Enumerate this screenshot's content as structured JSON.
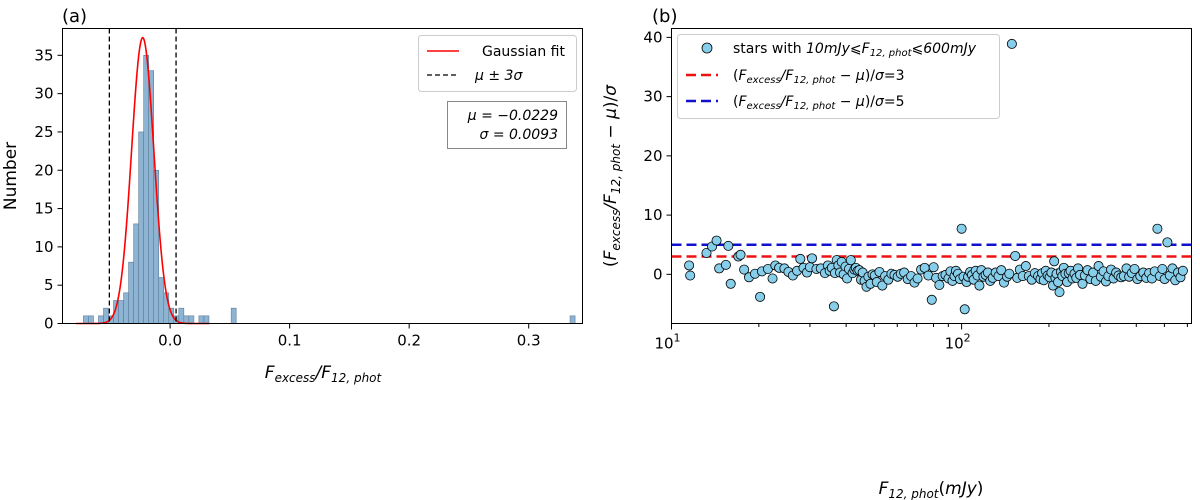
{
  "chart_data": [
    {
      "panel": "(a)",
      "type": "histogram",
      "xlabel": "F_excess/F_12,phot",
      "ylabel": "Number",
      "xlim": [
        -0.09,
        0.345
      ],
      "ylim": [
        0,
        38.5
      ],
      "xticks": [
        0.0,
        0.1,
        0.2,
        0.3
      ],
      "xtick_labels": [
        "0.0",
        "0.1",
        "0.2",
        "0.3"
      ],
      "yticks": [
        0,
        5,
        10,
        15,
        20,
        25,
        30,
        35
      ],
      "ytick_labels": [
        "0",
        "5",
        "10",
        "15",
        "20",
        "25",
        "30",
        "35"
      ],
      "bin_width": 0.0042,
      "bars": [
        {
          "x": -0.0725,
          "count": 1
        },
        {
          "x": -0.0683,
          "count": 1
        },
        {
          "x": -0.0599,
          "count": 1
        },
        {
          "x": -0.0557,
          "count": 2
        },
        {
          "x": -0.0515,
          "count": 1
        },
        {
          "x": -0.0473,
          "count": 3
        },
        {
          "x": -0.0431,
          "count": 3
        },
        {
          "x": -0.0389,
          "count": 4
        },
        {
          "x": -0.0347,
          "count": 8
        },
        {
          "x": -0.0305,
          "count": 13
        },
        {
          "x": -0.0263,
          "count": 25
        },
        {
          "x": -0.0221,
          "count": 35
        },
        {
          "x": -0.0179,
          "count": 33
        },
        {
          "x": -0.0137,
          "count": 20
        },
        {
          "x": -0.0095,
          "count": 6
        },
        {
          "x": -0.0053,
          "count": 4
        },
        {
          "x": -0.0011,
          "count": 2
        },
        {
          "x": 0.0031,
          "count": 1
        },
        {
          "x": 0.0073,
          "count": 2
        },
        {
          "x": 0.0115,
          "count": 1
        },
        {
          "x": 0.0157,
          "count": 1
        },
        {
          "x": 0.0241,
          "count": 1
        },
        {
          "x": 0.0283,
          "count": 1
        },
        {
          "x": 0.0511,
          "count": 2
        },
        {
          "x": 0.3346,
          "count": 1
        }
      ],
      "gaussian": {
        "label": "Gaussian fit",
        "mu": -0.0229,
        "sigma": 0.0093,
        "peak": 37.3,
        "color": "#ff0000"
      },
      "vlines": {
        "label": "μ ± 3σ",
        "x": [
          -0.0508,
          0.005
        ],
        "color": "#000000"
      },
      "stats": {
        "mu_text": "μ = −0.0229",
        "sigma_text": "σ = 0.0093"
      },
      "bar_color": "#8eb4d4",
      "legend_position": "top-right"
    },
    {
      "panel": "(b)",
      "type": "scatter",
      "xscale": "log",
      "xlabel": "F_12,phot (mJy)",
      "ylabel": "(F_excess/F_12,phot − μ)/σ",
      "xlim": [
        10,
        620
      ],
      "ylim": [
        -8.3,
        41.5
      ],
      "xticks": [
        10,
        100
      ],
      "yticks": [
        0,
        10,
        20,
        30,
        40
      ],
      "ytick_labels": [
        "0",
        "10",
        "20",
        "30",
        "40"
      ],
      "hlines": [
        {
          "label": "(F_excess/F_12,phot − μ)/σ=3",
          "y": 3,
          "color": "#ee1111"
        },
        {
          "label": "(F_excess/F_12,phot − μ)/σ=5",
          "y": 5,
          "color": "#1111cc"
        }
      ],
      "scatter_label": "stars with 10mJy⩽F_12,phot⩽600mJy",
      "point_color": "#87ceeb",
      "legend_position": "top-left",
      "points": [
        [
          11.5,
          1.5
        ],
        [
          11.6,
          -0.2
        ],
        [
          13.2,
          3.6
        ],
        [
          13.8,
          4.7
        ],
        [
          14.3,
          5.7
        ],
        [
          14.6,
          1.0
        ],
        [
          15.4,
          1.6
        ],
        [
          15.7,
          4.8
        ],
        [
          16.0,
          -1.6
        ],
        [
          17.0,
          3.0
        ],
        [
          17.3,
          3.3
        ],
        [
          17.8,
          0.8
        ],
        [
          18.5,
          -0.5
        ],
        [
          19.4,
          0.1
        ],
        [
          20.2,
          -3.8
        ],
        [
          20.5,
          0.5
        ],
        [
          21.5,
          0.9
        ],
        [
          22.3,
          -0.7
        ],
        [
          22.8,
          1.5
        ],
        [
          23.5,
          1.1
        ],
        [
          24.5,
          1.0
        ],
        [
          25.3,
          0.4
        ],
        [
          26.2,
          -0.2
        ],
        [
          27.1,
          0.6
        ],
        [
          27.8,
          2.6
        ],
        [
          28.5,
          1.1
        ],
        [
          29.3,
          0.3
        ],
        [
          30.0,
          1.2
        ],
        [
          30.5,
          2.7
        ],
        [
          31.6,
          0.9
        ],
        [
          32.7,
          1.0
        ],
        [
          33.8,
          0.2
        ],
        [
          34.6,
          1.5
        ],
        [
          35.1,
          0.6
        ],
        [
          35.7,
          1.1
        ],
        [
          36.3,
          -5.4
        ],
        [
          36.6,
          0.2
        ],
        [
          37.1,
          2.4
        ],
        [
          37.6,
          1.5
        ],
        [
          38.1,
          0.3
        ],
        [
          38.6,
          2.1
        ],
        [
          39.2,
          0.0
        ],
        [
          39.8,
          1.3
        ],
        [
          40.3,
          -0.7
        ],
        [
          40.9,
          0.9
        ],
        [
          41.5,
          2.4
        ],
        [
          42.1,
          0.2
        ],
        [
          42.7,
          0.8
        ],
        [
          43.2,
          1.1
        ],
        [
          43.8,
          0.6
        ],
        [
          44.4,
          0.7
        ],
        [
          45.0,
          -0.9
        ],
        [
          45.6,
          0.3
        ],
        [
          46.3,
          -1.1
        ],
        [
          47.0,
          -2.1
        ],
        [
          47.7,
          -0.4
        ],
        [
          48.5,
          -1.6
        ],
        [
          49.3,
          0.0
        ],
        [
          50.2,
          -0.2
        ],
        [
          51.0,
          -1.3
        ],
        [
          52.1,
          0.4
        ],
        [
          53.3,
          -1.9
        ],
        [
          54.5,
          -0.3
        ],
        [
          55.9,
          -0.9
        ],
        [
          57.3,
          0.1
        ],
        [
          58.7,
          -0.1
        ],
        [
          60.2,
          -0.4
        ],
        [
          61.7,
          0.1
        ],
        [
          63.4,
          0.3
        ],
        [
          65.2,
          -0.8
        ],
        [
          67.0,
          -0.3
        ],
        [
          68.8,
          -1.4
        ],
        [
          70.5,
          -0.7
        ],
        [
          72.5,
          0.8
        ],
        [
          74.6,
          1.1
        ],
        [
          76.8,
          -0.2
        ],
        [
          78.9,
          -4.3
        ],
        [
          80.1,
          1.2
        ],
        [
          81.7,
          -0.6
        ],
        [
          83.8,
          -1.8
        ],
        [
          86.0,
          -0.3
        ],
        [
          88.0,
          -0.1
        ],
        [
          90.1,
          -0.7
        ],
        [
          91.5,
          0.5
        ],
        [
          93.0,
          -1.1
        ],
        [
          94.5,
          -0.3
        ],
        [
          95.6,
          0.6
        ],
        [
          97.2,
          0.1
        ],
        [
          98.7,
          -0.8
        ],
        [
          100.0,
          7.7
        ],
        [
          101.5,
          -0.4
        ],
        [
          102.5,
          -5.9
        ],
        [
          104.0,
          -1.3
        ],
        [
          105.3,
          -0.4
        ],
        [
          107.0,
          0.4
        ],
        [
          108.6,
          -0.1
        ],
        [
          110.0,
          -0.9
        ],
        [
          111.8,
          0.6
        ],
        [
          113.4,
          -0.2
        ],
        [
          115.2,
          -1.9
        ],
        [
          117.0,
          0.7
        ],
        [
          118.9,
          -0.4
        ],
        [
          121.0,
          -0.1
        ],
        [
          123.2,
          0.3
        ],
        [
          125.5,
          -1.1
        ],
        [
          128.0,
          -0.6
        ],
        [
          131.0,
          0.3
        ],
        [
          134.0,
          -0.3
        ],
        [
          137.0,
          0.7
        ],
        [
          140.0,
          -1.4
        ],
        [
          143.5,
          -0.4
        ],
        [
          146.0,
          0.1
        ],
        [
          149.0,
          38.9
        ],
        [
          153.0,
          3.1
        ],
        [
          155.5,
          -0.6
        ],
        [
          158.7,
          0.8
        ],
        [
          162.5,
          -0.3
        ],
        [
          166.5,
          1.4
        ],
        [
          170.5,
          -0.3
        ],
        [
          174.5,
          -0.9
        ],
        [
          178.8,
          0.2
        ],
        [
          183.5,
          -0.3
        ],
        [
          187.0,
          -0.8
        ],
        [
          189.5,
          0.2
        ],
        [
          192.0,
          -1.0
        ],
        [
          195.0,
          0.6
        ],
        [
          198.0,
          -0.2
        ],
        [
          201.0,
          -0.5
        ],
        [
          204.0,
          0.3
        ],
        [
          206.5,
          -1.9
        ],
        [
          208.5,
          2.2
        ],
        [
          210.5,
          -0.6
        ],
        [
          212.5,
          0.1
        ],
        [
          215.0,
          -1.3
        ],
        [
          217.5,
          -3.0
        ],
        [
          220.0,
          0.4
        ],
        [
          222.5,
          -0.3
        ],
        [
          225.0,
          1.1
        ],
        [
          228.0,
          0.1
        ],
        [
          231.0,
          -1.3
        ],
        [
          234.0,
          0.2
        ],
        [
          237.5,
          0.6
        ],
        [
          241.0,
          -0.7
        ],
        [
          245.0,
          0.1
        ],
        [
          248.5,
          -0.6
        ],
        [
          252.0,
          1.0
        ],
        [
          256.0,
          -0.1
        ],
        [
          261.0,
          -1.6
        ],
        [
          266.0,
          -0.2
        ],
        [
          271.5,
          0.7
        ],
        [
          278.0,
          -0.8
        ],
        [
          284.0,
          0.3
        ],
        [
          290.0,
          -1.1
        ],
        [
          296.5,
          1.4
        ],
        [
          302.0,
          -0.4
        ],
        [
          308.5,
          0.5
        ],
        [
          314.5,
          -1.2
        ],
        [
          320.5,
          -0.3
        ],
        [
          327.5,
          0.8
        ],
        [
          334.0,
          -0.7
        ],
        [
          341.0,
          0.3
        ],
        [
          347.5,
          -0.2
        ],
        [
          355.0,
          -0.5
        ],
        [
          362.5,
          -0.3
        ],
        [
          370.0,
          1.0
        ],
        [
          378.0,
          -0.4
        ],
        [
          386.0,
          0.2
        ],
        [
          394.5,
          0.9
        ],
        [
          403.5,
          -0.8
        ],
        [
          413.0,
          -0.3
        ],
        [
          423.0,
          0.3
        ],
        [
          433.0,
          -0.6
        ],
        [
          443.0,
          0.2
        ],
        [
          453.0,
          -0.7
        ],
        [
          463.0,
          0.5
        ],
        [
          473.0,
          7.7
        ],
        [
          482.5,
          -0.3
        ],
        [
          492.0,
          0.9
        ],
        [
          501.0,
          -0.8
        ],
        [
          512.0,
          5.4
        ],
        [
          522.0,
          -0.2
        ],
        [
          533.0,
          1.0
        ],
        [
          545.0,
          -1.0
        ],
        [
          557.0,
          0.3
        ],
        [
          568.0,
          -0.5
        ],
        [
          579.0,
          0.6
        ]
      ]
    }
  ]
}
